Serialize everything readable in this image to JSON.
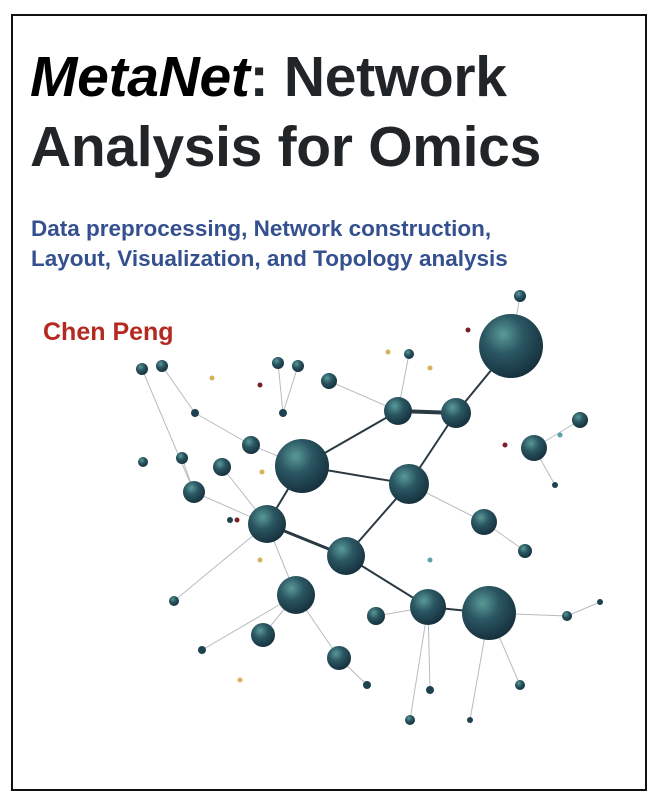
{
  "cover": {
    "title_italic": "MetaNet",
    "title_rest_line1": ": Network",
    "title_line2": "Analysis for Omics",
    "subtitle_line1": "Data preprocessing, Network construction,",
    "subtitle_line2": "Layout, Visualization, and Topology analysis",
    "author": "Chen Peng"
  },
  "colors": {
    "title": "#222528",
    "subtitle": "#34508f",
    "author": "#b52a20",
    "node": "#1f4250",
    "edge": "#b8bcbf"
  }
}
